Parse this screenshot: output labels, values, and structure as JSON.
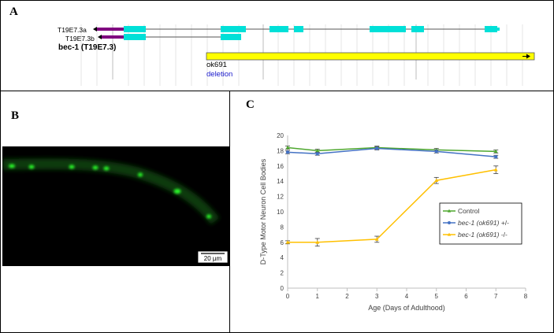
{
  "panels": {
    "a": {
      "letter": "A"
    },
    "b": {
      "letter": "B"
    },
    "c": {
      "letter": "C"
    }
  },
  "gene_model": {
    "transcripts": [
      {
        "label": "T19E7.3a",
        "exon_count": 8
      },
      {
        "label": "T19E7.3b",
        "exon_count": 2
      }
    ],
    "gene_label": "bec-1 (T19E7.3)",
    "deletion": {
      "allele": "ok691",
      "type": "deletion"
    },
    "colors": {
      "exon": "#00e0d8",
      "utr": "#800080",
      "deletion_bar": "#ffff00",
      "deletion_text": "#1a1acc"
    }
  },
  "micrograph": {
    "scale_bar_label": "20 µm",
    "description_colors": {
      "background": "#000000",
      "neuron": "#29ff29"
    }
  },
  "chart_data": {
    "type": "line",
    "x": [
      0,
      1,
      3,
      5,
      7
    ],
    "xlim": [
      0,
      8
    ],
    "ylim": [
      0,
      20
    ],
    "xticks": [
      0,
      1,
      2,
      3,
      4,
      5,
      6,
      7,
      8
    ],
    "yticks": [
      0,
      2,
      4,
      6,
      8,
      10,
      12,
      14,
      16,
      18,
      20
    ],
    "xlabel": "Age (Days of Adulthood)",
    "ylabel": "D-Type Motor Neuron Cell Bodies",
    "legend_position": "right",
    "grid": false,
    "series": [
      {
        "name": "Control",
        "italic_prefix": "",
        "suffix": "Control",
        "color": "#4ea72e",
        "marker": "triangle",
        "values": [
          18.4,
          18.0,
          18.4,
          18.1,
          17.9
        ],
        "errors": [
          0.2,
          0.2,
          0.2,
          0.2,
          0.2
        ]
      },
      {
        "name": "bec-1 (ok691) +/-",
        "italic_prefix": "bec-1 (ok691)",
        "suffix": " +/-",
        "color": "#4472c4",
        "marker": "circle",
        "values": [
          17.8,
          17.6,
          18.3,
          17.9,
          17.2
        ],
        "errors": [
          0.2,
          0.2,
          0.2,
          0.2,
          0.2
        ]
      },
      {
        "name": "bec-1 (ok691) -/-",
        "italic_prefix": "bec-1 (ok691)",
        "suffix": " -/-",
        "color": "#ffc000",
        "marker": "triangle",
        "values": [
          6.0,
          6.0,
          6.4,
          14.1,
          15.5
        ],
        "errors": [
          0.2,
          0.5,
          0.4,
          0.4,
          0.5
        ]
      }
    ]
  }
}
